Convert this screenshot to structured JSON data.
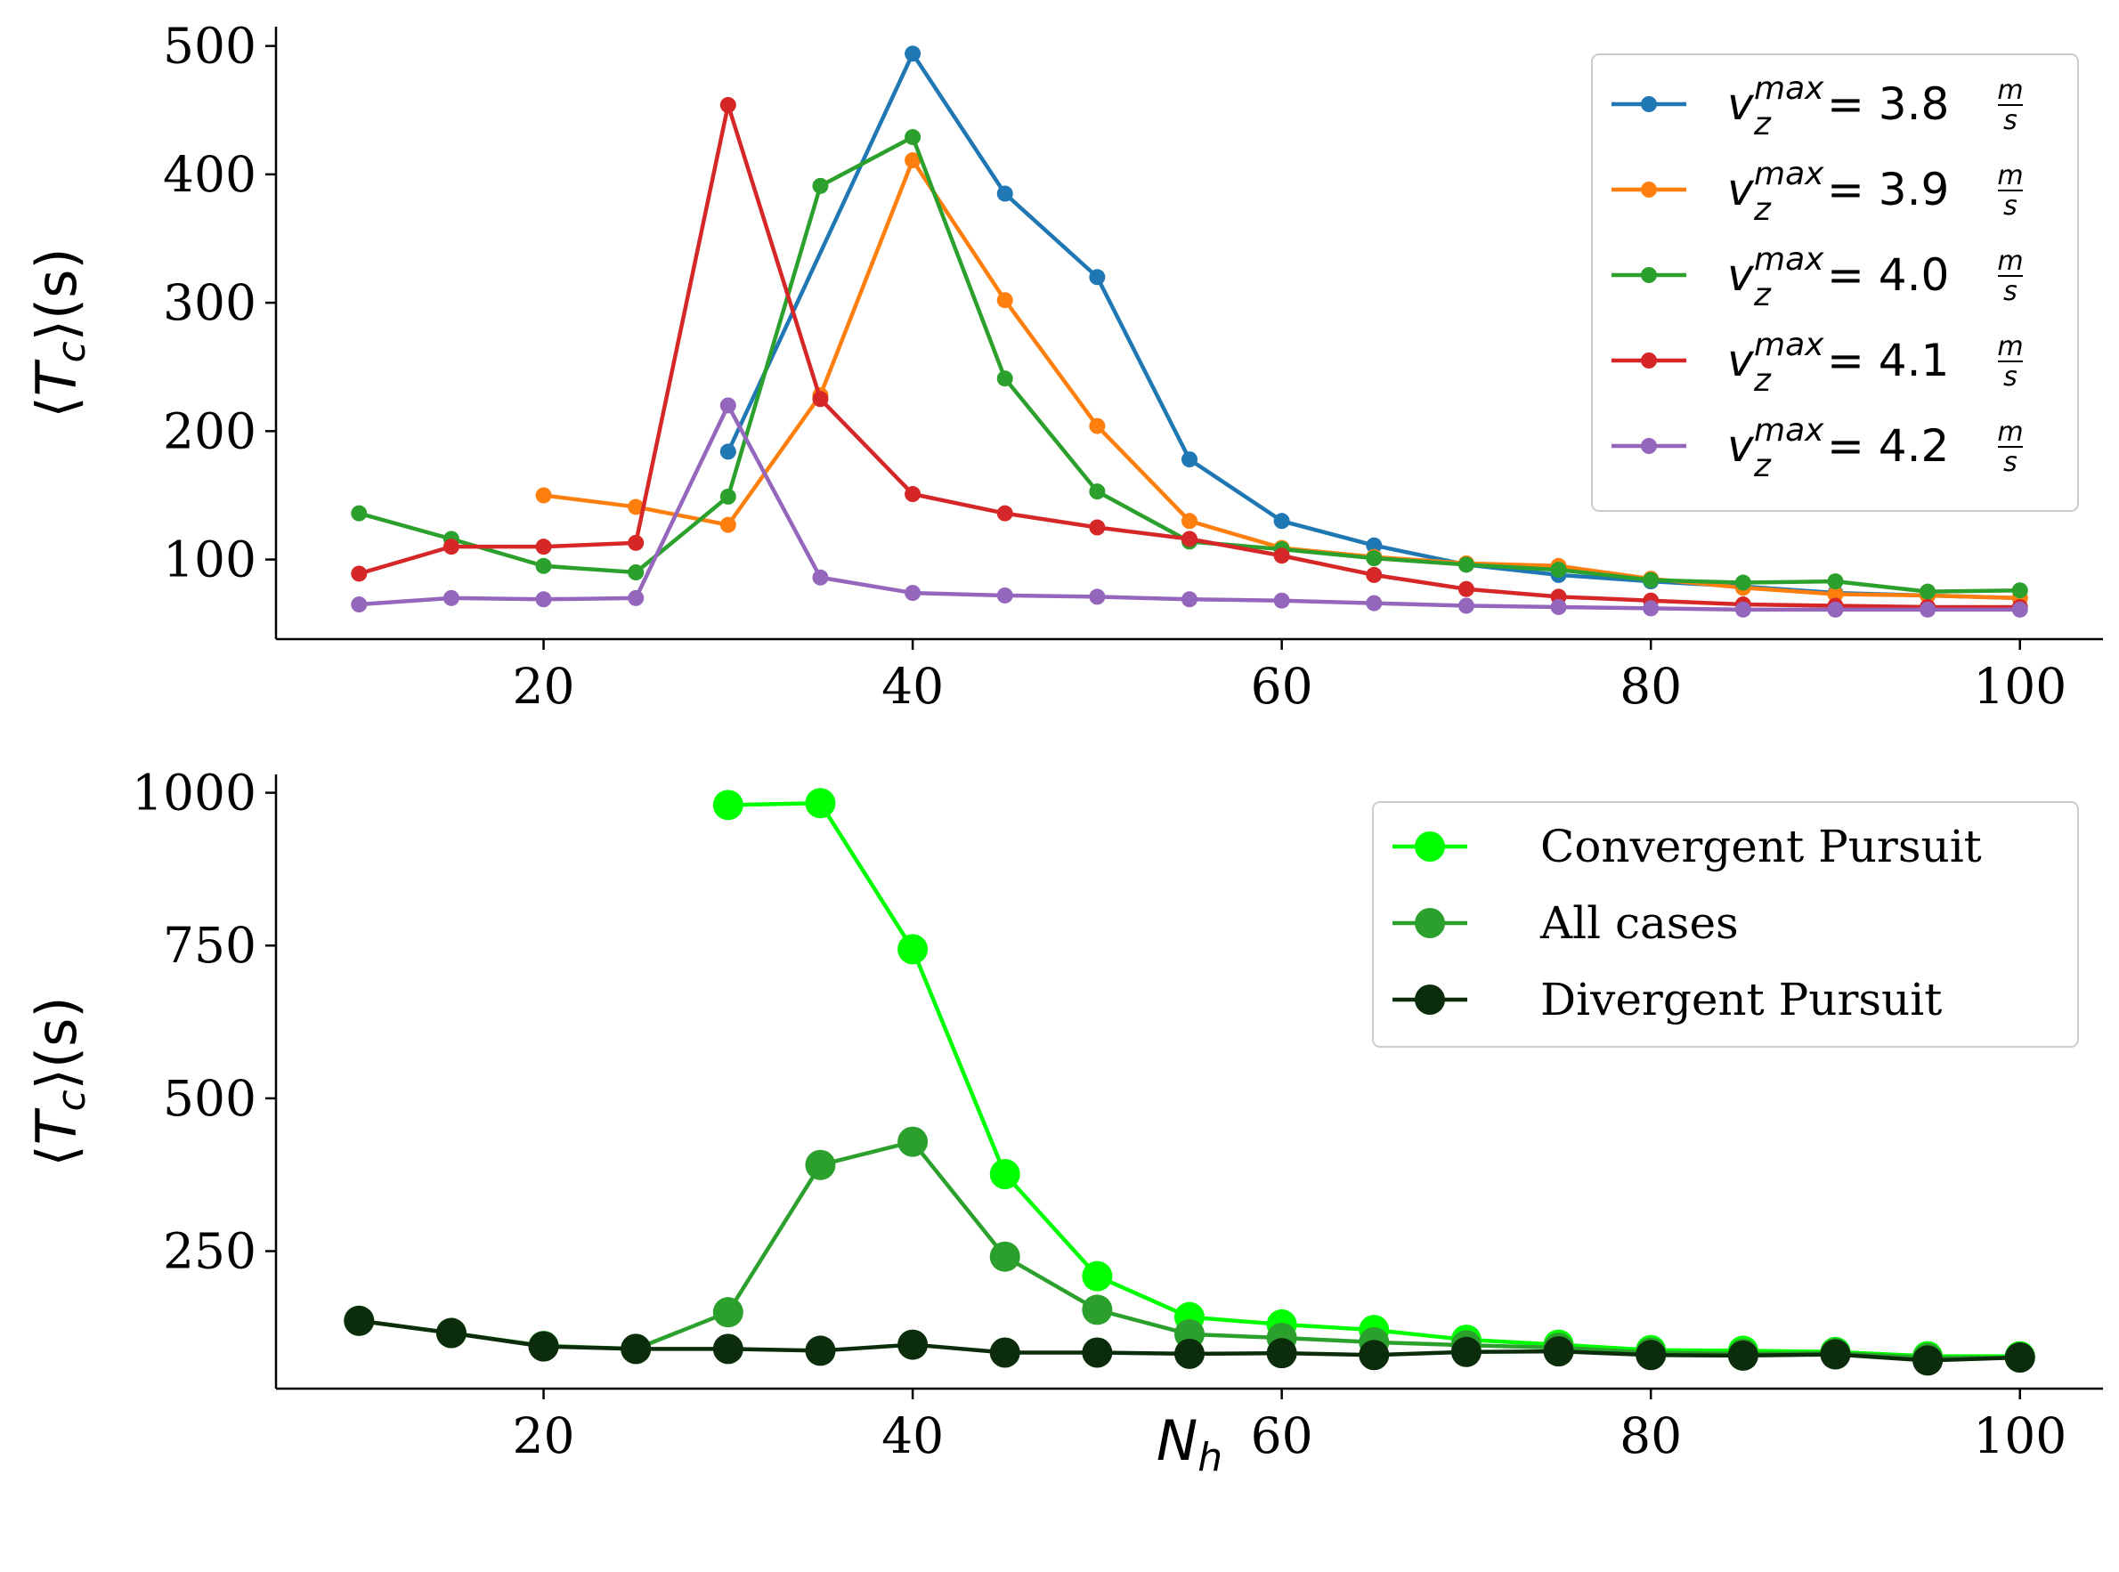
{
  "chart_data": [
    {
      "type": "line",
      "title": "",
      "xlabel": "",
      "ylabel": "⟨T_c⟩(s)",
      "ylabel_parts": {
        "open": "⟨",
        "var": "T",
        "sub": "c",
        "close": "⟩(s)"
      },
      "xlim": [
        5.5,
        104.5
      ],
      "ylim": [
        38,
        515
      ],
      "xticks": [
        20,
        40,
        60,
        80,
        100
      ],
      "xtick_labels": [
        "20",
        "40",
        "60",
        "80",
        "100"
      ],
      "yticks": [
        100,
        200,
        300,
        400,
        500
      ],
      "ytick_labels": [
        "100",
        "200",
        "300",
        "400",
        "500"
      ],
      "legend": "top-right",
      "grid": false,
      "series": [
        {
          "name": "v_z^max = 3.8 m/s",
          "legend_parts": {
            "var": "v",
            "sub": "z",
            "sup": "max",
            "eq": "= 3.8",
            "num": "m",
            "den": "s"
          },
          "color": "#1f77b4",
          "x": [
            30,
            40,
            45,
            50,
            55,
            60,
            65,
            70,
            75,
            80,
            85,
            90,
            95,
            100
          ],
          "y": [
            184,
            494,
            385,
            320,
            178,
            130,
            111,
            96,
            88,
            83,
            79,
            74,
            72,
            70
          ]
        },
        {
          "name": "v_z^max = 3.9 m/s",
          "legend_parts": {
            "var": "v",
            "sub": "z",
            "sup": "max",
            "eq": "= 3.9",
            "num": "m",
            "den": "s"
          },
          "color": "#ff7f0e",
          "x": [
            20,
            25,
            30,
            35,
            40,
            45,
            50,
            55,
            60,
            65,
            70,
            75,
            80,
            85,
            90,
            95,
            100
          ],
          "y": [
            150,
            141,
            127,
            228,
            411,
            302,
            204,
            130,
            109,
            102,
            97,
            95,
            85,
            78,
            73,
            72,
            70
          ]
        },
        {
          "name": "v_z^max = 4.0 m/s",
          "legend_parts": {
            "var": "v",
            "sub": "z",
            "sup": "max",
            "eq": "= 4.0",
            "num": "m",
            "den": "s"
          },
          "color": "#2ca02c",
          "x": [
            10,
            15,
            20,
            25,
            30,
            35,
            40,
            45,
            50,
            55,
            60,
            65,
            70,
            75,
            80,
            85,
            90,
            95,
            100
          ],
          "y": [
            136,
            116,
            95,
            90,
            149,
            391,
            429,
            241,
            153,
            114,
            108,
            101,
            96,
            92,
            84,
            82,
            83,
            75,
            76
          ]
        },
        {
          "name": "v_z^max = 4.1 m/s",
          "legend_parts": {
            "var": "v",
            "sub": "z",
            "sup": "max",
            "eq": "= 4.1",
            "num": "m",
            "den": "s"
          },
          "color": "#d62728",
          "x": [
            10,
            15,
            20,
            25,
            30,
            35,
            40,
            45,
            50,
            55,
            60,
            65,
            70,
            75,
            80,
            85,
            90,
            95,
            100
          ],
          "y": [
            89,
            110,
            110,
            113,
            454,
            225,
            151,
            136,
            125,
            116,
            103,
            88,
            77,
            71,
            68,
            65,
            64,
            63,
            63
          ]
        },
        {
          "name": "v_z^max = 4.2 m/s",
          "legend_parts": {
            "var": "v",
            "sub": "z",
            "sup": "max",
            "eq": "= 4.2",
            "num": "m",
            "den": "s"
          },
          "color": "#9467bd",
          "x": [
            10,
            15,
            20,
            25,
            30,
            35,
            40,
            45,
            50,
            55,
            60,
            65,
            70,
            75,
            80,
            85,
            90,
            95,
            100
          ],
          "y": [
            65,
            70,
            69,
            70,
            220,
            86,
            74,
            72,
            71,
            69,
            68,
            66,
            64,
            63,
            62,
            61,
            61,
            61,
            61
          ]
        }
      ]
    },
    {
      "type": "line",
      "title": "",
      "xlabel": "N_h",
      "xlabel_parts": {
        "var": "N",
        "sub": "h"
      },
      "ylabel": "⟨T_c⟩(s)",
      "ylabel_parts": {
        "open": "⟨",
        "var": "T",
        "sub": "c",
        "close": "⟩(s)"
      },
      "xlim": [
        5.5,
        104.5
      ],
      "ylim": [
        25,
        1030
      ],
      "xticks": [
        20,
        40,
        60,
        80,
        100
      ],
      "xtick_labels": [
        "20",
        "40",
        "60",
        "80",
        "100"
      ],
      "yticks": [
        250,
        500,
        750,
        1000
      ],
      "ytick_labels": [
        "250",
        "500",
        "750",
        "1000"
      ],
      "legend": "top-right",
      "grid": false,
      "series": [
        {
          "name": "Convergent Pursuit",
          "color": "#00ff00",
          "x": [
            30,
            35,
            40,
            45,
            50,
            55,
            60,
            65,
            70,
            75,
            80,
            85,
            90,
            95,
            100
          ],
          "y": [
            980,
            983,
            744,
            376,
            209,
            142,
            130,
            121,
            105,
            97,
            88,
            87,
            85,
            78,
            78
          ]
        },
        {
          "name": "All cases",
          "color": "#2ca02c",
          "x": [
            10,
            15,
            20,
            25,
            30,
            35,
            40,
            45,
            50,
            55,
            60,
            65,
            70,
            75,
            80,
            85,
            90,
            95,
            100
          ],
          "y": [
            136,
            116,
            95,
            90,
            150,
            391,
            429,
            241,
            154,
            114,
            108,
            101,
            96,
            92,
            84,
            82,
            83,
            75,
            76
          ]
        },
        {
          "name": "Divergent Pursuit",
          "color": "#0b2d0b",
          "x": [
            10,
            15,
            20,
            25,
            30,
            35,
            40,
            45,
            50,
            55,
            60,
            65,
            70,
            75,
            80,
            85,
            90,
            95,
            100
          ],
          "y": [
            136,
            116,
            94,
            90,
            90,
            87,
            97,
            84,
            84,
            82,
            83,
            80,
            85,
            86,
            80,
            79,
            81,
            71,
            76
          ]
        }
      ]
    }
  ]
}
